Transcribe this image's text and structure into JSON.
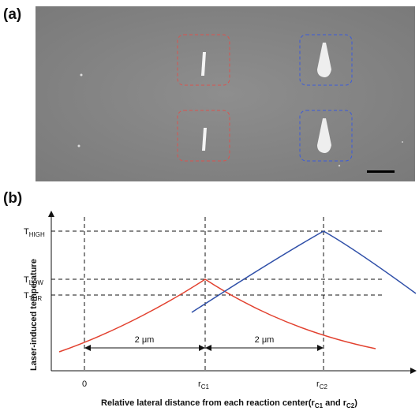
{
  "panel_a": {
    "label": "(a)"
  },
  "panel_b": {
    "label": "(b)",
    "y_axis_title": "Laser-induced temperature",
    "levels": [
      {
        "base": "T",
        "sub": "HIGH"
      },
      {
        "base": "T",
        "sub": "LOW"
      },
      {
        "base": "T",
        "sub": "THR"
      }
    ],
    "x_labels": [
      {
        "base": "0",
        "sub": ""
      },
      {
        "base": "r",
        "sub": "C1"
      },
      {
        "base": "r",
        "sub": "C2"
      }
    ],
    "spacings": [
      "2 μm",
      "2 μm"
    ],
    "x_axis_title": [
      "Relative lateral distance from each reaction center(r",
      "C1",
      " and r",
      "C2",
      ")"
    ]
  }
}
